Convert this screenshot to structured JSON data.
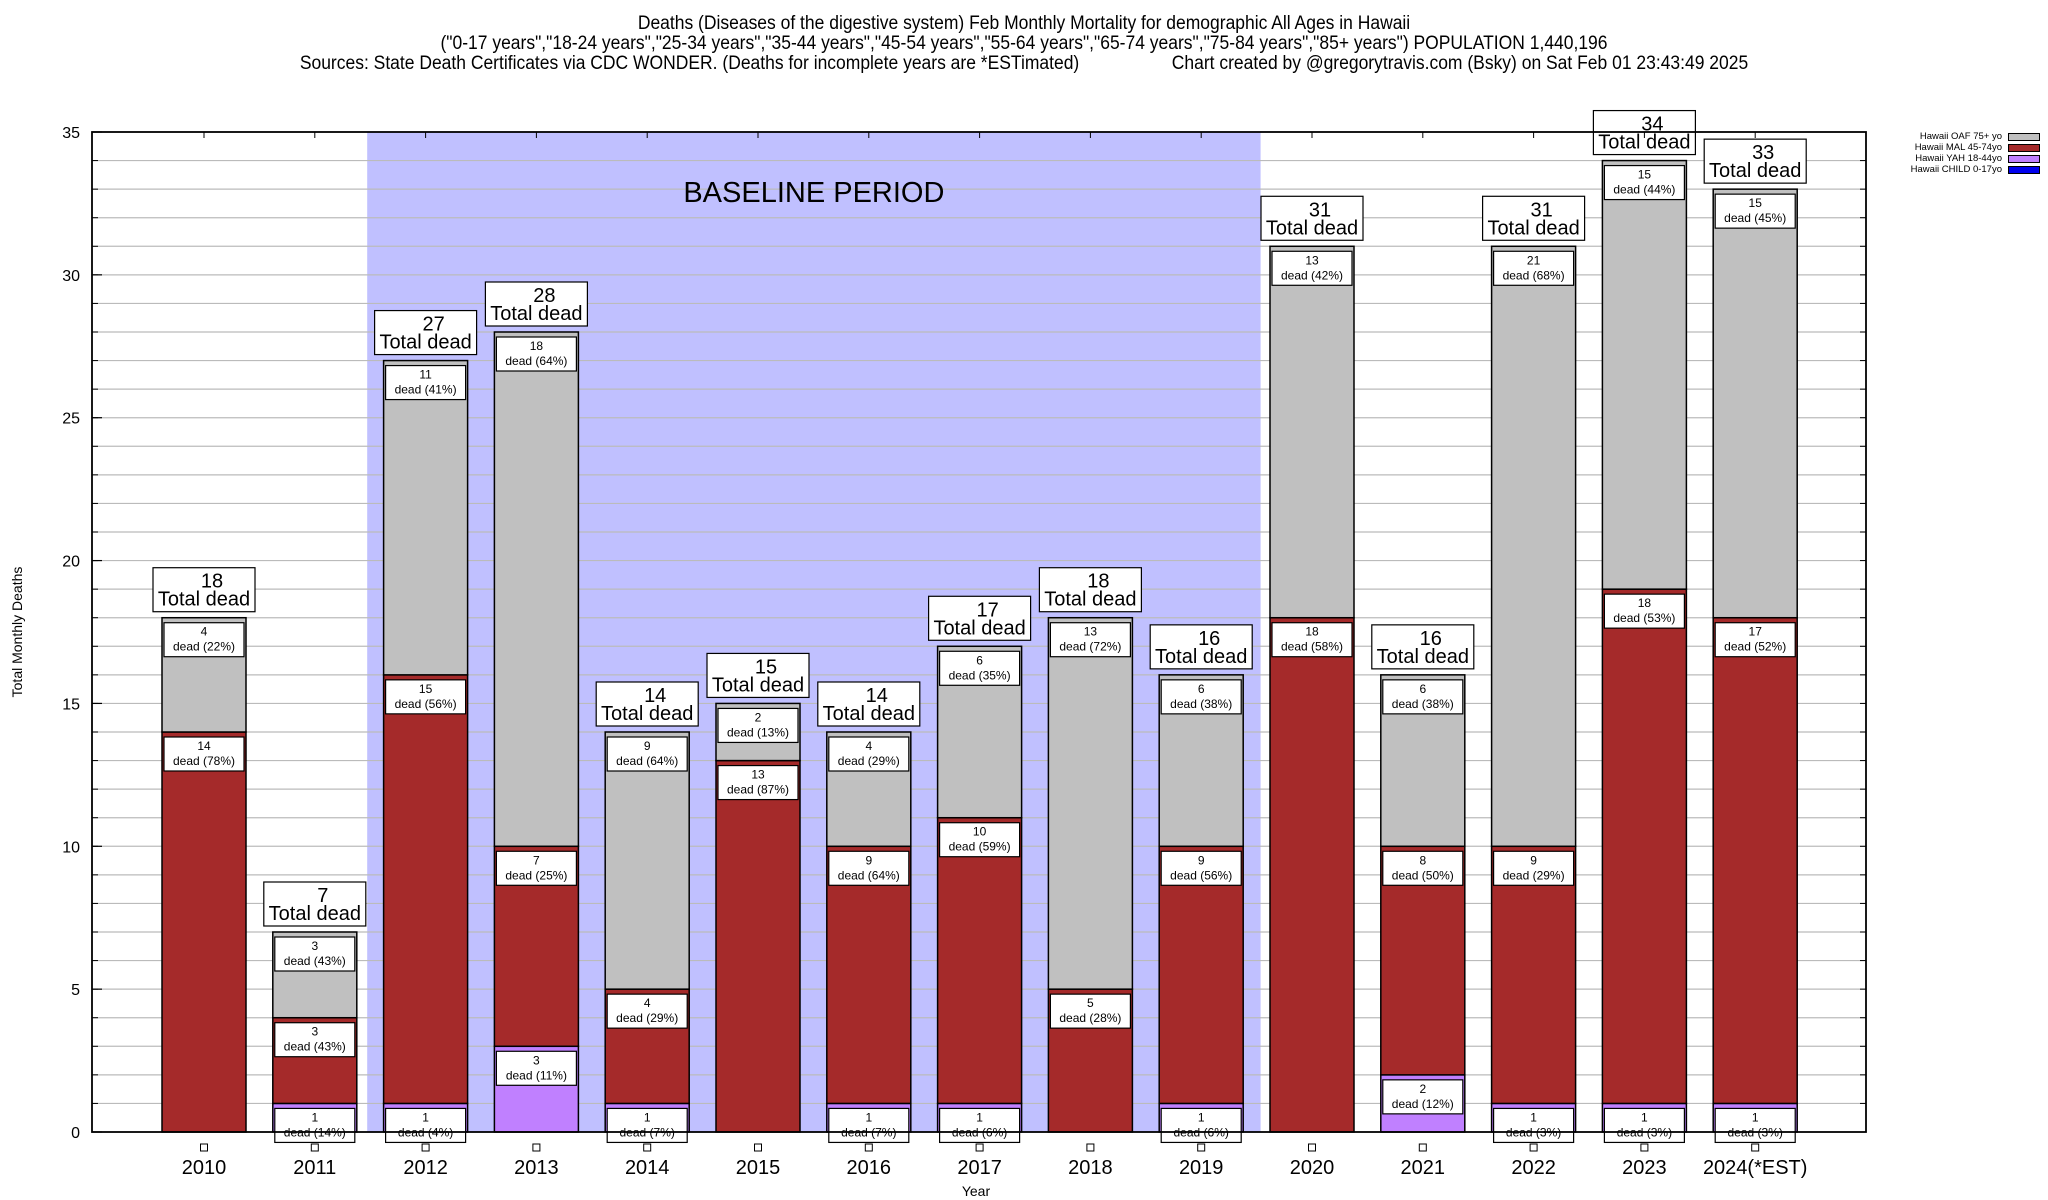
{
  "header": {
    "line1": "Deaths (Diseases of the digestive system) Feb Monthly Mortality for demographic All Ages in Hawaii",
    "line2": "(\"0-17 years\",\"18-24 years\",\"25-34 years\",\"35-44 years\",\"45-54 years\",\"55-64 years\",\"65-74 years\",\"75-84 years\",\"85+ years\") POPULATION 1,440,196",
    "line3_left": "Sources: State Death Certificates via CDC WONDER. (Deaths for incomplete years are *ESTimated)",
    "line3_right": "Chart created by @gregorytravis.com (Bsky) on Sat Feb 01 23:43:49 2025"
  },
  "chart_data": {
    "type": "bar",
    "stacked": true,
    "title": "Deaths (Diseases of the digestive system) Feb Monthly Mortality for demographic All Ages in Hawaii",
    "xlabel": "Year",
    "ylabel": "Total Monthly Deaths",
    "ylim": [
      0,
      35
    ],
    "yticks": [
      0,
      5,
      10,
      15,
      20,
      25,
      30,
      35
    ],
    "grid": true,
    "legend_position": "top-right",
    "annotation": "BASELINE PERIOD",
    "baseline_period": [
      "2012",
      "2019"
    ],
    "total_label_suffix": "Total dead",
    "segment_label_word": "dead",
    "categories": [
      "2010",
      "2011",
      "2012",
      "2013",
      "2014",
      "2015",
      "2016",
      "2017",
      "2018",
      "2019",
      "2020",
      "2021",
      "2022",
      "2023",
      "2024(*EST)"
    ],
    "totals": [
      18,
      7,
      27,
      28,
      14,
      15,
      14,
      17,
      18,
      16,
      31,
      16,
      31,
      34,
      33
    ],
    "series": [
      {
        "name": "Hawaii CHILD 0-17yo",
        "color": "#0000ee",
        "values": [
          0,
          0,
          0,
          0,
          0,
          0,
          0,
          0,
          0,
          0,
          0,
          0,
          0,
          0,
          0
        ],
        "pcts": [
          null,
          null,
          null,
          null,
          null,
          null,
          null,
          null,
          null,
          null,
          null,
          null,
          null,
          null,
          null
        ]
      },
      {
        "name": "Hawaii YAH 18-44yo",
        "color": "#c080ff",
        "values": [
          0,
          1,
          1,
          3,
          1,
          0,
          1,
          1,
          0,
          1,
          0,
          2,
          1,
          1,
          1
        ],
        "pcts": [
          null,
          14,
          4,
          11,
          7,
          null,
          7,
          6,
          null,
          6,
          null,
          12,
          3,
          3,
          3
        ]
      },
      {
        "name": "Hawaii MAL 45-74yo",
        "color": "#a52a2a",
        "values": [
          14,
          3,
          15,
          7,
          4,
          13,
          9,
          10,
          5,
          9,
          18,
          8,
          9,
          18,
          17
        ],
        "pcts": [
          78,
          43,
          56,
          25,
          29,
          87,
          64,
          59,
          28,
          56,
          58,
          50,
          29,
          53,
          52
        ]
      },
      {
        "name": "Hawaii OAF 75+ yo",
        "color": "#c0c0c0",
        "values": [
          4,
          3,
          11,
          18,
          9,
          2,
          4,
          6,
          13,
          6,
          13,
          6,
          21,
          15,
          15
        ],
        "pcts": [
          22,
          43,
          41,
          64,
          64,
          13,
          29,
          35,
          72,
          38,
          42,
          38,
          68,
          44,
          45
        ]
      }
    ]
  },
  "colors": {
    "baseline_band": "#c0c0ff",
    "grid": "#bbbbbb"
  }
}
